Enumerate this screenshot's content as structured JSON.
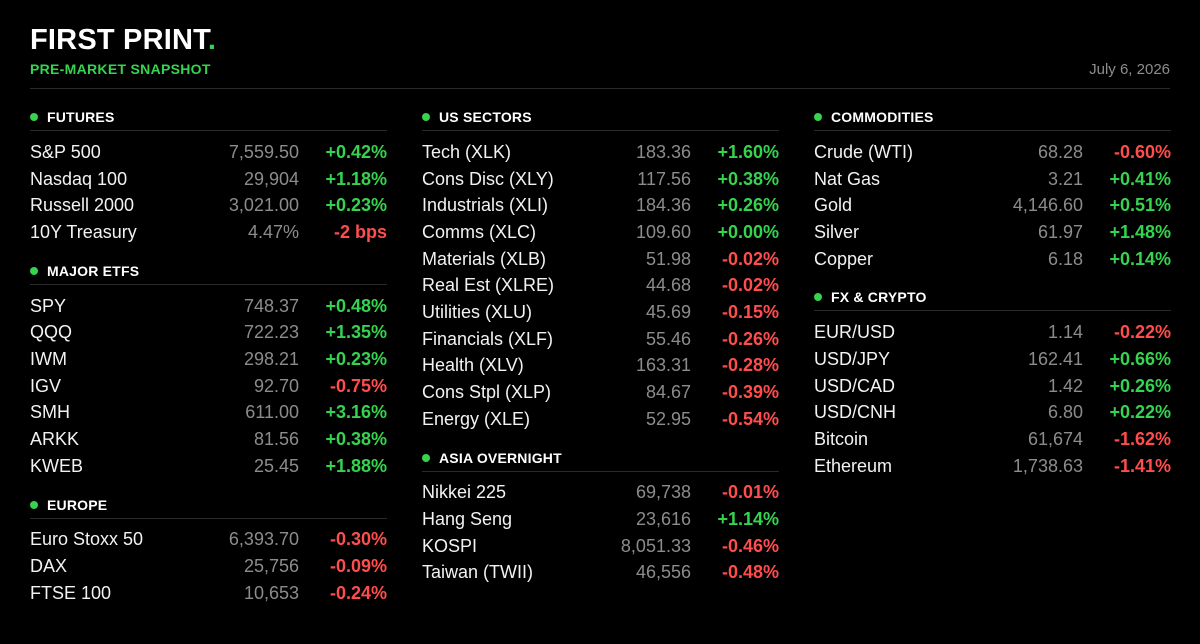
{
  "header": {
    "title": "FIRST PRINT",
    "dot": ".",
    "subtitle": "PRE-MARKET SNAPSHOT",
    "date": "July 6, 2026"
  },
  "colors": {
    "positive": "#35d34f",
    "negative": "#ff4d4d",
    "background": "#000000"
  },
  "columns": [
    [
      {
        "title": "FUTURES",
        "rows": [
          {
            "name": "S&P 500",
            "value": "7,559.50",
            "change": "+0.42%",
            "dir": "pos"
          },
          {
            "name": "Nasdaq 100",
            "value": "29,904",
            "change": "+1.18%",
            "dir": "pos"
          },
          {
            "name": "Russell 2000",
            "value": "3,021.00",
            "change": "+0.23%",
            "dir": "pos"
          },
          {
            "name": "10Y Treasury",
            "value": "4.47%",
            "change": "-2 bps",
            "dir": "neg"
          }
        ]
      },
      {
        "title": "MAJOR ETFS",
        "rows": [
          {
            "name": "SPY",
            "value": "748.37",
            "change": "+0.48%",
            "dir": "pos"
          },
          {
            "name": "QQQ",
            "value": "722.23",
            "change": "+1.35%",
            "dir": "pos"
          },
          {
            "name": "IWM",
            "value": "298.21",
            "change": "+0.23%",
            "dir": "pos"
          },
          {
            "name": "IGV",
            "value": "92.70",
            "change": "-0.75%",
            "dir": "neg"
          },
          {
            "name": "SMH",
            "value": "611.00",
            "change": "+3.16%",
            "dir": "pos"
          },
          {
            "name": "ARKK",
            "value": "81.56",
            "change": "+0.38%",
            "dir": "pos"
          },
          {
            "name": "KWEB",
            "value": "25.45",
            "change": "+1.88%",
            "dir": "pos"
          }
        ]
      },
      {
        "title": "EUROPE",
        "rows": [
          {
            "name": "Euro Stoxx 50",
            "value": "6,393.70",
            "change": "-0.30%",
            "dir": "neg"
          },
          {
            "name": "DAX",
            "value": "25,756",
            "change": "-0.09%",
            "dir": "neg"
          },
          {
            "name": "FTSE 100",
            "value": "10,653",
            "change": "-0.24%",
            "dir": "neg"
          }
        ]
      }
    ],
    [
      {
        "title": "US SECTORS",
        "rows": [
          {
            "name": "Tech  (XLK)",
            "value": "183.36",
            "change": "+1.60%",
            "dir": "pos"
          },
          {
            "name": "Cons Disc (XLY)",
            "value": "117.56",
            "change": "+0.38%",
            "dir": "pos"
          },
          {
            "name": "Industrials (XLI)",
            "value": "184.36",
            "change": "+0.26%",
            "dir": "pos"
          },
          {
            "name": "Comms (XLC)",
            "value": "109.60",
            "change": "+0.00%",
            "dir": "pos"
          },
          {
            "name": "Materials (XLB)",
            "value": "51.98",
            "change": "-0.02%",
            "dir": "neg"
          },
          {
            "name": "Real Est (XLRE)",
            "value": "44.68",
            "change": "-0.02%",
            "dir": "neg"
          },
          {
            "name": "Utilities (XLU)",
            "value": "45.69",
            "change": "-0.15%",
            "dir": "neg"
          },
          {
            "name": "Financials (XLF)",
            "value": "55.46",
            "change": "-0.26%",
            "dir": "neg"
          },
          {
            "name": "Health (XLV)",
            "value": "163.31",
            "change": "-0.28%",
            "dir": "neg"
          },
          {
            "name": "Cons Stpl (XLP)",
            "value": "84.67",
            "change": "-0.39%",
            "dir": "neg"
          },
          {
            "name": "Energy (XLE)",
            "value": "52.95",
            "change": "-0.54%",
            "dir": "neg"
          }
        ]
      },
      {
        "title": "ASIA OVERNIGHT",
        "rows": [
          {
            "name": "Nikkei 225",
            "value": "69,738",
            "change": "-0.01%",
            "dir": "neg"
          },
          {
            "name": "Hang Seng",
            "value": "23,616",
            "change": "+1.14%",
            "dir": "pos"
          },
          {
            "name": "KOSPI",
            "value": "8,051.33",
            "change": "-0.46%",
            "dir": "neg"
          },
          {
            "name": "Taiwan (TWII)",
            "value": "46,556",
            "change": "-0.48%",
            "dir": "neg"
          }
        ]
      }
    ],
    [
      {
        "title": "COMMODITIES",
        "rows": [
          {
            "name": "Crude (WTI)",
            "value": "68.28",
            "change": "-0.60%",
            "dir": "neg"
          },
          {
            "name": "Nat Gas",
            "value": "3.21",
            "change": "+0.41%",
            "dir": "pos"
          },
          {
            "name": "Gold",
            "value": "4,146.60",
            "change": "+0.51%",
            "dir": "pos"
          },
          {
            "name": "Silver",
            "value": "61.97",
            "change": "+1.48%",
            "dir": "pos"
          },
          {
            "name": "Copper",
            "value": "6.18",
            "change": "+0.14%",
            "dir": "pos"
          }
        ]
      },
      {
        "title": "FX & CRYPTO",
        "rows": [
          {
            "name": "EUR/USD",
            "value": "1.14",
            "change": "-0.22%",
            "dir": "neg"
          },
          {
            "name": "USD/JPY",
            "value": "162.41",
            "change": "+0.66%",
            "dir": "pos"
          },
          {
            "name": "USD/CAD",
            "value": "1.42",
            "change": "+0.26%",
            "dir": "pos"
          },
          {
            "name": "USD/CNH",
            "value": "6.80",
            "change": "+0.22%",
            "dir": "pos"
          },
          {
            "name": "Bitcoin",
            "value": "61,674",
            "change": "-1.62%",
            "dir": "neg"
          },
          {
            "name": "Ethereum",
            "value": "1,738.63",
            "change": "-1.41%",
            "dir": "neg"
          }
        ]
      }
    ]
  ]
}
